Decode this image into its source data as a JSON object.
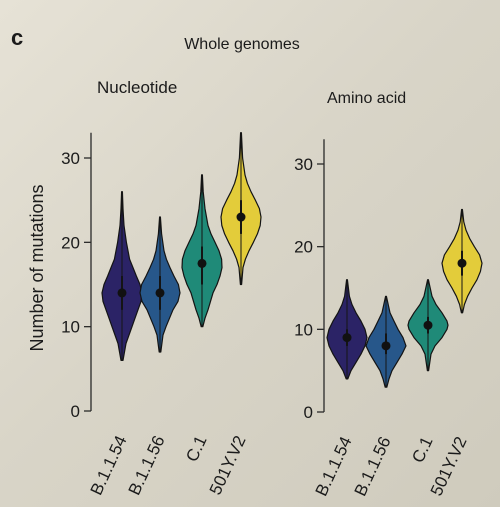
{
  "panel_label": "c",
  "colors": {
    "B.1.1.54": "#2b2366",
    "B.1.1.56": "#27578a",
    "C.1": "#1f8a78",
    "501Y.V2": "#e3cc3a",
    "outline": "#141414",
    "axis": "#2a2a2a"
  },
  "chart_data": [
    {
      "type": "violin",
      "suptitle": "Whole genomes",
      "title": "Nucleotide",
      "ylabel": "Number of mutations",
      "ylim": [
        0,
        33
      ],
      "yticks": [
        0,
        10,
        20,
        30
      ],
      "categories": [
        "B.1.1.54",
        "B.1.1.56",
        "C.1",
        "501Y.V2"
      ],
      "series": [
        {
          "category": "B.1.1.54",
          "median": 14,
          "q1": 12,
          "q3": 16,
          "min": 6,
          "max": 26,
          "density": [
            [
              6,
              0.05
            ],
            [
              8,
              0.2
            ],
            [
              10,
              0.5
            ],
            [
              11,
              0.65
            ],
            [
              12,
              0.8
            ],
            [
              13,
              0.95
            ],
            [
              14,
              1.0
            ],
            [
              15,
              0.9
            ],
            [
              16,
              0.72
            ],
            [
              17,
              0.55
            ],
            [
              18,
              0.38
            ],
            [
              20,
              0.22
            ],
            [
              22,
              0.1
            ],
            [
              24,
              0.05
            ],
            [
              26,
              0.02
            ]
          ]
        },
        {
          "category": "B.1.1.56",
          "median": 14,
          "q1": 12,
          "q3": 16,
          "min": 7,
          "max": 23,
          "density": [
            [
              7,
              0.04
            ],
            [
              9,
              0.15
            ],
            [
              10,
              0.3
            ],
            [
              12,
              0.65
            ],
            [
              13,
              0.9
            ],
            [
              14,
              1.0
            ],
            [
              15,
              0.92
            ],
            [
              16,
              0.7
            ],
            [
              17,
              0.5
            ],
            [
              18,
              0.32
            ],
            [
              19,
              0.2
            ],
            [
              21,
              0.08
            ],
            [
              23,
              0.02
            ]
          ]
        },
        {
          "category": "C.1",
          "median": 17.5,
          "q1": 15,
          "q3": 19.5,
          "min": 10,
          "max": 28,
          "density": [
            [
              10,
              0.04
            ],
            [
              11,
              0.15
            ],
            [
              12,
              0.3
            ],
            [
              14,
              0.55
            ],
            [
              15,
              0.75
            ],
            [
              16,
              0.9
            ],
            [
              17,
              1.0
            ],
            [
              18,
              0.98
            ],
            [
              19,
              0.85
            ],
            [
              20,
              0.65
            ],
            [
              21,
              0.45
            ],
            [
              22,
              0.3
            ],
            [
              24,
              0.15
            ],
            [
              26,
              0.06
            ],
            [
              28,
              0.02
            ]
          ]
        },
        {
          "category": "501Y.V2",
          "median": 23,
          "q1": 21,
          "q3": 25,
          "min": 15,
          "max": 33,
          "density": [
            [
              15,
              0.03
            ],
            [
              17,
              0.1
            ],
            [
              18,
              0.22
            ],
            [
              19,
              0.4
            ],
            [
              20,
              0.62
            ],
            [
              21,
              0.82
            ],
            [
              22,
              0.96
            ],
            [
              23,
              1.0
            ],
            [
              24,
              0.92
            ],
            [
              25,
              0.72
            ],
            [
              26,
              0.5
            ],
            [
              27,
              0.32
            ],
            [
              28,
              0.2
            ],
            [
              30,
              0.08
            ],
            [
              33,
              0.02
            ]
          ]
        }
      ]
    },
    {
      "type": "violin",
      "title": "Amino acid",
      "ylim": [
        0,
        33
      ],
      "yticks": [
        0,
        10,
        20,
        30
      ],
      "categories": [
        "B.1.1.54",
        "B.1.1.56",
        "C.1",
        "501Y.V2"
      ],
      "series": [
        {
          "category": "B.1.1.54",
          "median": 9,
          "q1": 8,
          "q3": 10,
          "min": 4,
          "max": 16,
          "density": [
            [
              4,
              0.04
            ],
            [
              5,
              0.2
            ],
            [
              6,
              0.45
            ],
            [
              7,
              0.7
            ],
            [
              8,
              0.9
            ],
            [
              9,
              1.0
            ],
            [
              10,
              0.9
            ],
            [
              11,
              0.7
            ],
            [
              12,
              0.45
            ],
            [
              13,
              0.25
            ],
            [
              14,
              0.12
            ],
            [
              16,
              0.02
            ]
          ]
        },
        {
          "category": "B.1.1.56",
          "median": 8,
          "q1": 7,
          "q3": 9.5,
          "min": 3,
          "max": 14,
          "density": [
            [
              3,
              0.04
            ],
            [
              4,
              0.15
            ],
            [
              5,
              0.3
            ],
            [
              6,
              0.55
            ],
            [
              7,
              0.8
            ],
            [
              8,
              1.0
            ],
            [
              9,
              0.85
            ],
            [
              10,
              0.6
            ],
            [
              11,
              0.4
            ],
            [
              12,
              0.2
            ],
            [
              14,
              0.02
            ]
          ]
        },
        {
          "category": "C.1",
          "median": 10.5,
          "q1": 9.5,
          "q3": 11.5,
          "min": 5,
          "max": 16,
          "density": [
            [
              5,
              0.03
            ],
            [
              7,
              0.15
            ],
            [
              8,
              0.35
            ],
            [
              9,
              0.7
            ],
            [
              10,
              0.95
            ],
            [
              10.5,
              1.0
            ],
            [
              11,
              0.95
            ],
            [
              12,
              0.7
            ],
            [
              13,
              0.4
            ],
            [
              14,
              0.2
            ],
            [
              16,
              0.02
            ]
          ]
        },
        {
          "category": "501Y.V2",
          "median": 18,
          "q1": 16.5,
          "q3": 19.5,
          "min": 12,
          "max": 24.5,
          "density": [
            [
              12,
              0.03
            ],
            [
              13,
              0.12
            ],
            [
              14,
              0.28
            ],
            [
              15,
              0.5
            ],
            [
              16,
              0.75
            ],
            [
              17,
              0.92
            ],
            [
              18,
              1.0
            ],
            [
              19,
              0.88
            ],
            [
              20,
              0.62
            ],
            [
              21,
              0.38
            ],
            [
              22,
              0.2
            ],
            [
              23,
              0.09
            ],
            [
              24.5,
              0.02
            ]
          ]
        }
      ]
    }
  ]
}
